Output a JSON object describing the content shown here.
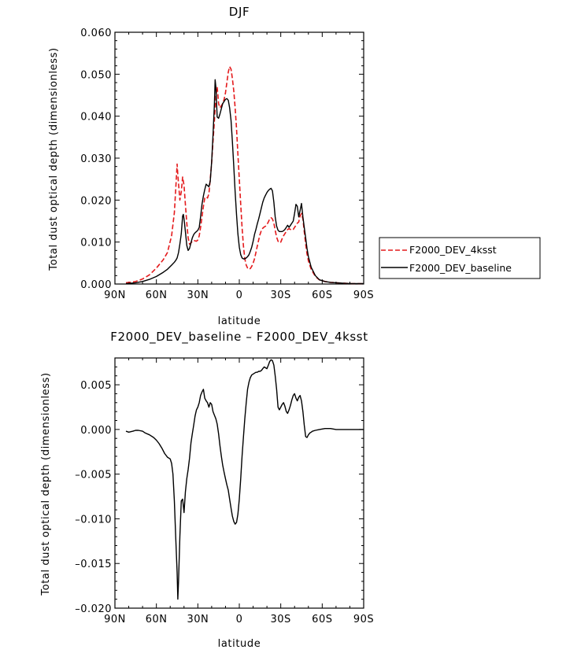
{
  "chart_data": [
    {
      "type": "line",
      "title": "DJF",
      "xlabel": "latitude",
      "ylabel": "Total dust optical depth (dimensionless)",
      "xlim": [
        -90,
        90
      ],
      "ylim": [
        0,
        0.06
      ],
      "x_tick_values": [
        -90,
        -60,
        -30,
        0,
        30,
        60,
        90
      ],
      "x_tick_labels": [
        "90N",
        "60N",
        "30N",
        "0",
        "30S",
        "60S",
        "90S"
      ],
      "y_tick_values": [
        0,
        0.01,
        0.02,
        0.03,
        0.04,
        0.05,
        0.06
      ],
      "y_tick_labels": [
        "0.000",
        "0.010",
        "0.020",
        "0.030",
        "0.040",
        "0.050",
        "0.060"
      ],
      "grid": false,
      "legend_position": "right",
      "series": [
        {
          "name": "F2000_DEV_4ksst",
          "color": "#e41a1c",
          "dash": "dashed",
          "x": [
            -82,
            -75,
            -70,
            -65,
            -60,
            -55,
            -52,
            -49,
            -47,
            -46,
            -45,
            -44.5,
            -43,
            -42,
            -41,
            -40,
            -39,
            -38,
            -37,
            -36,
            -35,
            -34,
            -33,
            -32,
            -31,
            -30,
            -29,
            -28,
            -27,
            -26,
            -25,
            -24,
            -23,
            -22,
            -21,
            -20,
            -19,
            -18,
            -17,
            -16,
            -15,
            -14,
            -13,
            -12,
            -11,
            -10,
            -9,
            -8,
            -7,
            -6,
            -5,
            -4,
            -3,
            -2,
            -1,
            0,
            1,
            2,
            3,
            4,
            5,
            6,
            7,
            8,
            9,
            10,
            11,
            12,
            13,
            14,
            15,
            16,
            17,
            18,
            19,
            20,
            21,
            22,
            23,
            24,
            25,
            26,
            27,
            28,
            29,
            30,
            31,
            32,
            33,
            34,
            35,
            36,
            37,
            38,
            39,
            40,
            41,
            42,
            43,
            44,
            45,
            46,
            47,
            48,
            49,
            50,
            52,
            55,
            58,
            62,
            66,
            70,
            75,
            80,
            85,
            90
          ],
          "y": [
            0.0003,
            0.0006,
            0.0012,
            0.0022,
            0.0038,
            0.0058,
            0.0075,
            0.0115,
            0.017,
            0.0225,
            0.0286,
            0.026,
            0.02,
            0.022,
            0.0255,
            0.0235,
            0.019,
            0.0145,
            0.011,
            0.0095,
            0.0098,
            0.0102,
            0.0104,
            0.0103,
            0.0102,
            0.0105,
            0.0115,
            0.0135,
            0.016,
            0.0185,
            0.0205,
            0.0208,
            0.0205,
            0.0215,
            0.025,
            0.029,
            0.034,
            0.039,
            0.0445,
            0.047,
            0.043,
            0.042,
            0.0425,
            0.043,
            0.044,
            0.0455,
            0.048,
            0.0505,
            0.0518,
            0.0512,
            0.049,
            0.046,
            0.042,
            0.037,
            0.031,
            0.025,
            0.019,
            0.0135,
            0.009,
            0.006,
            0.0045,
            0.0038,
            0.0035,
            0.0037,
            0.0042,
            0.005,
            0.006,
            0.0075,
            0.009,
            0.0105,
            0.0118,
            0.0128,
            0.0133,
            0.0136,
            0.0138,
            0.0142,
            0.0148,
            0.0155,
            0.0158,
            0.0155,
            0.0145,
            0.0128,
            0.0112,
            0.0102,
            0.0098,
            0.01,
            0.0108,
            0.0115,
            0.012,
            0.0125,
            0.013,
            0.0132,
            0.013,
            0.0128,
            0.013,
            0.0135,
            0.014,
            0.0145,
            0.0148,
            0.0162,
            0.0168,
            0.0155,
            0.0125,
            0.0095,
            0.0072,
            0.0055,
            0.0035,
            0.0018,
            0.001,
            0.0006,
            0.0004,
            0.0003,
            0.0002,
            0.0001,
            0.0001,
            0.0001
          ]
        },
        {
          "name": "F2000_DEV_baseline",
          "color": "#000000",
          "dash": "solid",
          "x": [
            -82,
            -75,
            -70,
            -65,
            -60,
            -55,
            -52,
            -49,
            -47,
            -46,
            -45,
            -44,
            -43,
            -42,
            -41,
            -40.5,
            -40,
            -39,
            -38,
            -37,
            -36,
            -35,
            -34,
            -33,
            -32,
            -31,
            -30,
            -29,
            -28,
            -27,
            -26,
            -25,
            -24,
            -23,
            -22,
            -21,
            -20,
            -19,
            -18,
            -17.5,
            -17,
            -16,
            -15,
            -14,
            -13,
            -12,
            -11,
            -10,
            -9,
            -8,
            -7,
            -6,
            -5,
            -4,
            -3,
            -2,
            -1,
            0,
            1,
            2,
            3,
            4,
            5,
            6,
            7,
            8,
            9,
            10,
            11,
            12,
            13,
            14,
            15,
            16,
            17,
            18,
            19,
            20,
            21,
            22,
            23,
            24,
            25,
            26,
            27,
            28,
            29,
            30,
            31,
            32,
            33,
            34,
            35,
            36,
            37,
            38,
            39,
            40,
            41,
            42,
            43,
            44,
            45,
            46,
            47,
            48,
            49,
            50,
            52,
            55,
            58,
            62,
            66,
            70,
            75,
            80,
            85,
            90
          ],
          "y": [
            0.0001,
            0.0003,
            0.0006,
            0.0011,
            0.0018,
            0.0028,
            0.0035,
            0.0045,
            0.0052,
            0.0056,
            0.0062,
            0.0075,
            0.0095,
            0.012,
            0.0162,
            0.0166,
            0.0155,
            0.0125,
            0.0092,
            0.008,
            0.0085,
            0.0098,
            0.011,
            0.0118,
            0.0122,
            0.0125,
            0.0128,
            0.0135,
            0.016,
            0.019,
            0.021,
            0.0225,
            0.0238,
            0.0235,
            0.0232,
            0.0245,
            0.0292,
            0.0355,
            0.043,
            0.0487,
            0.047,
            0.0398,
            0.0395,
            0.0405,
            0.0418,
            0.043,
            0.0435,
            0.044,
            0.0442,
            0.0438,
            0.042,
            0.039,
            0.034,
            0.028,
            0.022,
            0.0165,
            0.012,
            0.0088,
            0.007,
            0.0062,
            0.006,
            0.006,
            0.0062,
            0.0065,
            0.007,
            0.0078,
            0.0088,
            0.0102,
            0.0118,
            0.013,
            0.0143,
            0.0155,
            0.0168,
            0.0182,
            0.0195,
            0.0205,
            0.0212,
            0.0218,
            0.0223,
            0.0226,
            0.0228,
            0.0222,
            0.0195,
            0.016,
            0.0138,
            0.0128,
            0.0125,
            0.0125,
            0.0125,
            0.0127,
            0.013,
            0.0135,
            0.014,
            0.0135,
            0.014,
            0.0145,
            0.015,
            0.0168,
            0.019,
            0.0185,
            0.016,
            0.0175,
            0.0192,
            0.016,
            0.0135,
            0.011,
            0.0085,
            0.0065,
            0.004,
            0.002,
            0.001,
            0.0006,
            0.0004,
            0.0003,
            0.0002,
            0.0001,
            0.0001,
            0.0001
          ]
        }
      ]
    },
    {
      "type": "line",
      "title": "F2000_DEV_baseline – F2000_DEV_4ksst",
      "xlabel": "latitude",
      "ylabel": "Total dust optical depth (dimensionless)",
      "xlim": [
        -90,
        90
      ],
      "ylim": [
        -0.02,
        0.008
      ],
      "x_tick_values": [
        -90,
        -60,
        -30,
        0,
        30,
        60,
        90
      ],
      "x_tick_labels": [
        "90N",
        "60N",
        "30N",
        "0",
        "30S",
        "60S",
        "90S"
      ],
      "y_tick_values": [
        -0.02,
        -0.015,
        -0.01,
        -0.005,
        0,
        0.005
      ],
      "y_tick_labels": [
        "–0.020",
        "–0.015",
        "–0.010",
        "–0.005",
        "0.000",
        "0.005"
      ],
      "grid": false,
      "series": [
        {
          "color": "#000000",
          "dash": "solid",
          "x": [
            -82,
            -80,
            -77,
            -75,
            -73,
            -70,
            -68,
            -65,
            -62,
            -60,
            -58,
            -56,
            -54,
            -52,
            -50,
            -49,
            -48,
            -47,
            -46,
            -45,
            -44.5,
            -44,
            -43,
            -42,
            -41,
            -40,
            -39,
            -38,
            -37,
            -36,
            -35,
            -34,
            -33,
            -32,
            -31,
            -30,
            -29,
            -28,
            -27,
            -26,
            -25,
            -24,
            -23,
            -22,
            -21,
            -20,
            -19,
            -18,
            -17,
            -16,
            -15,
            -14,
            -13,
            -12,
            -11,
            -10,
            -9,
            -8,
            -7,
            -6,
            -5,
            -4,
            -3,
            -2,
            -1,
            0,
            1,
            2,
            3,
            4,
            5,
            6,
            7,
            8,
            9,
            10,
            11,
            12,
            13,
            14,
            15,
            16,
            17,
            18,
            19,
            20,
            21,
            22,
            23,
            24,
            25,
            26,
            27,
            28,
            29,
            30,
            31,
            32,
            33,
            34,
            35,
            36,
            37,
            38,
            39,
            40,
            41,
            42,
            43,
            44,
            45,
            46,
            47,
            48,
            49,
            50,
            51,
            52,
            53,
            55,
            58,
            62,
            66,
            70,
            75,
            80,
            85,
            90
          ],
          "y": [
            -0.0002,
            -0.0003,
            -0.0002,
            -0.0001,
            -0.0001,
            -0.0002,
            -0.0004,
            -0.0006,
            -0.0009,
            -0.0012,
            -0.0016,
            -0.0021,
            -0.0027,
            -0.0031,
            -0.0033,
            -0.0038,
            -0.005,
            -0.008,
            -0.012,
            -0.016,
            -0.019,
            -0.017,
            -0.012,
            -0.008,
            -0.0078,
            -0.0093,
            -0.007,
            -0.0055,
            -0.0045,
            -0.0032,
            -0.0015,
            -0.0005,
            0.0005,
            0.0015,
            0.0022,
            0.0025,
            0.003,
            0.0038,
            0.0042,
            0.0045,
            0.0035,
            0.0032,
            0.003,
            0.0025,
            0.003,
            0.0028,
            0.002,
            0.0016,
            0.0012,
            0.0006,
            -0.0005,
            -0.0018,
            -0.003,
            -0.004,
            -0.0048,
            -0.0055,
            -0.0062,
            -0.0068,
            -0.0078,
            -0.0088,
            -0.0097,
            -0.0103,
            -0.0106,
            -0.0104,
            -0.0095,
            -0.0078,
            -0.0055,
            -0.003,
            -0.0008,
            0.0012,
            0.003,
            0.0045,
            0.0053,
            0.0058,
            0.0061,
            0.0062,
            0.0063,
            0.0064,
            0.0064,
            0.0065,
            0.0065,
            0.0066,
            0.0068,
            0.007,
            0.0069,
            0.0068,
            0.0072,
            0.0076,
            0.0078,
            0.0077,
            0.0072,
            0.006,
            0.0045,
            0.0025,
            0.0022,
            0.0025,
            0.0028,
            0.003,
            0.0026,
            0.002,
            0.0018,
            0.0022,
            0.0027,
            0.0033,
            0.0038,
            0.004,
            0.0035,
            0.0032,
            0.0036,
            0.0038,
            0.0032,
            0.002,
            0.0005,
            -0.0008,
            -0.0009,
            -0.0006,
            -0.0004,
            -0.0003,
            -0.0002,
            -0.0001,
            0,
            0.0001,
            0.0001,
            0,
            0,
            0,
            0,
            0
          ]
        }
      ]
    }
  ]
}
